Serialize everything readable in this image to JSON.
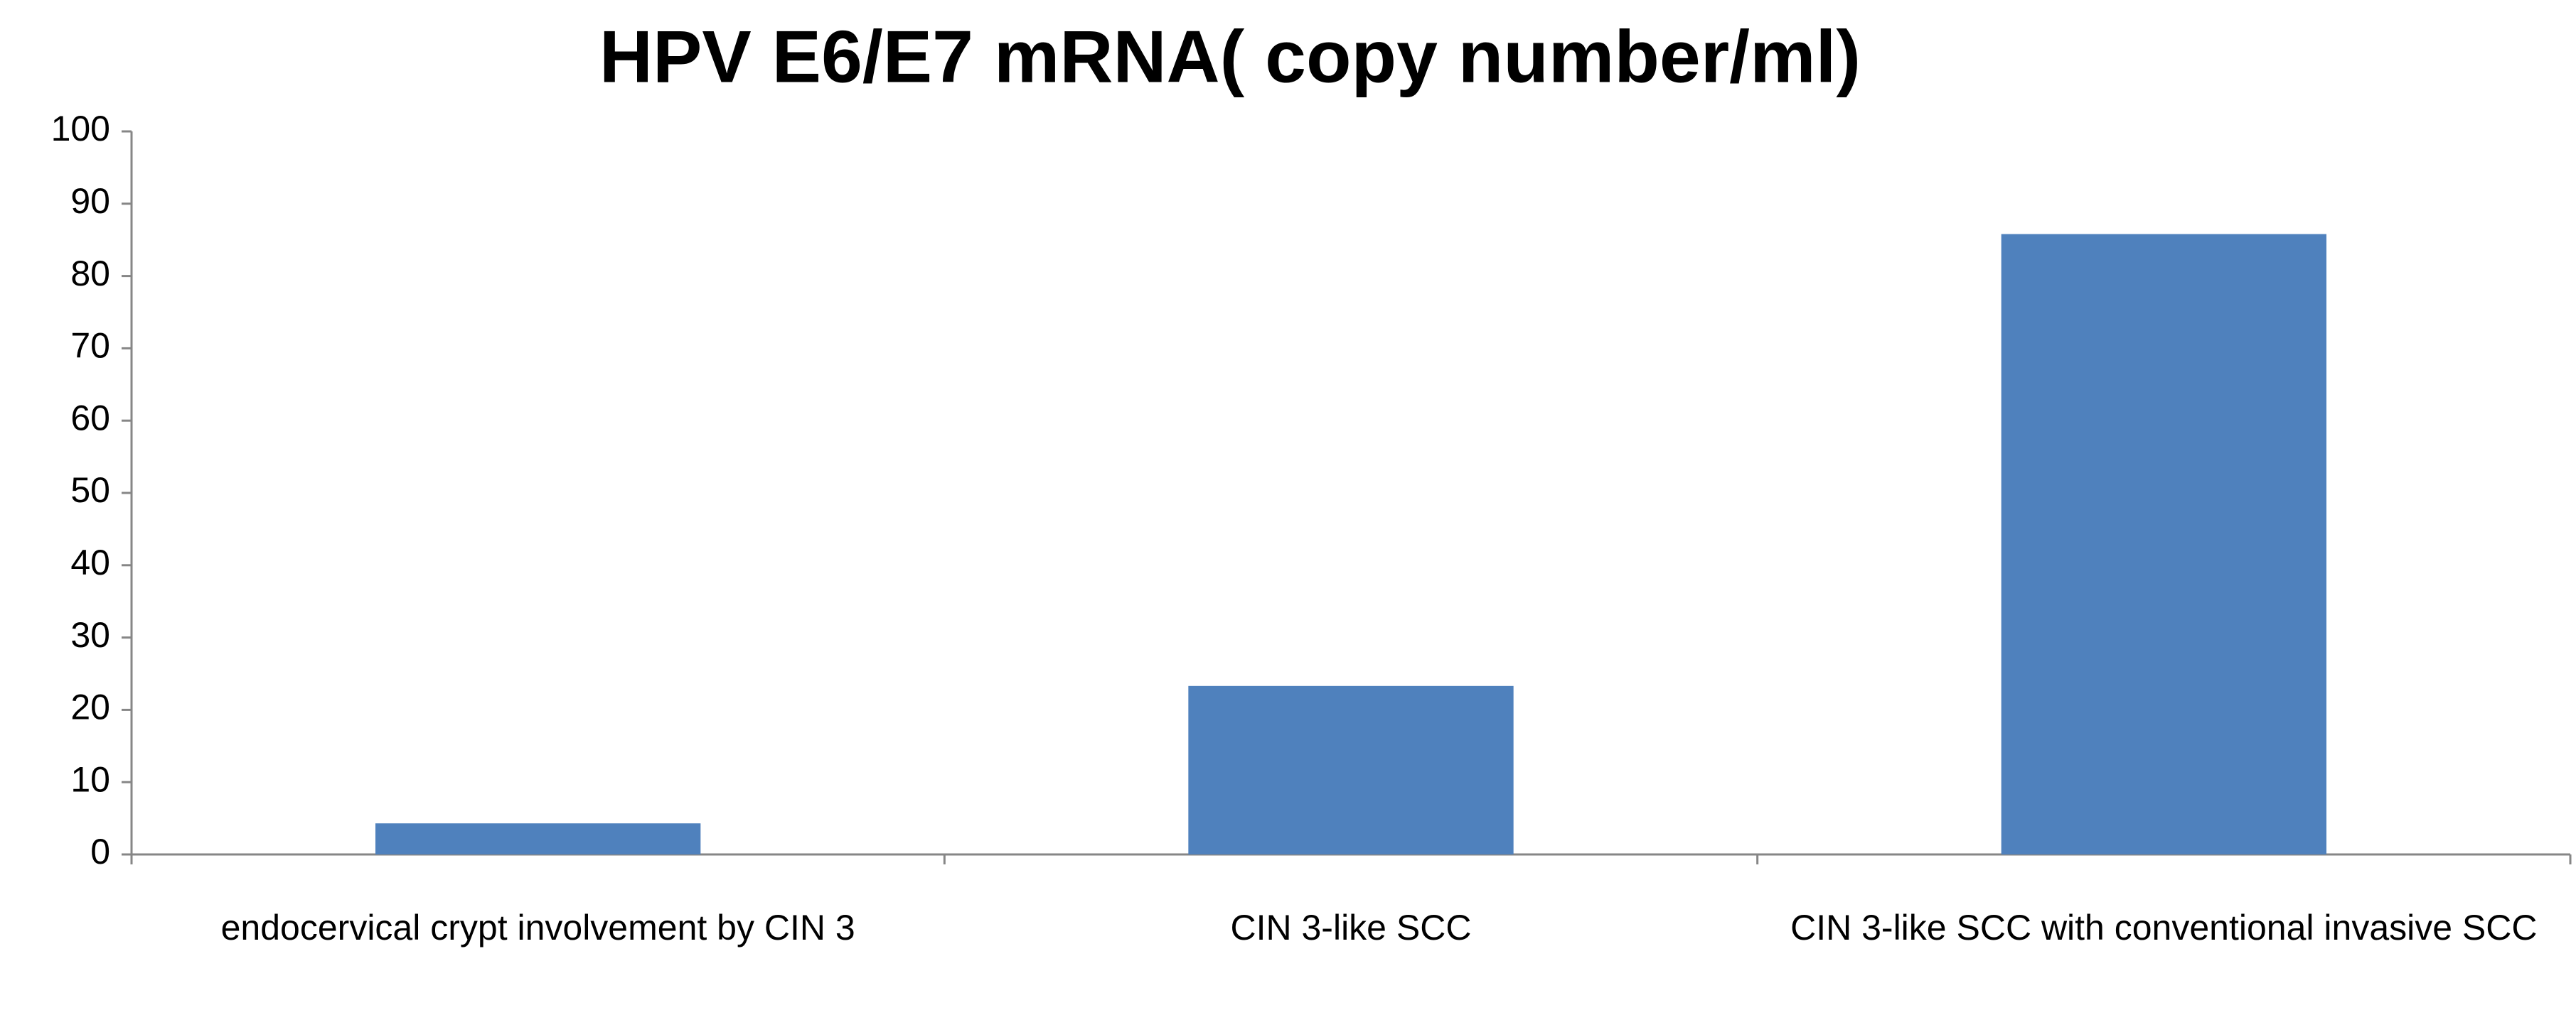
{
  "chart_data": {
    "type": "bar",
    "title": "HPV E6/E7 mRNA( copy number/ml)",
    "categories": [
      "endocervical crypt involvement by CIN 3",
      "CIN 3-like SCC",
      "CIN 3-like SCC with conventional invasive SCC"
    ],
    "values": [
      4.3,
      23.3,
      85.8
    ],
    "color": "#4f81bd",
    "ylim": [
      0,
      100
    ],
    "yticks": [
      0,
      10,
      20,
      30,
      40,
      50,
      60,
      70,
      80,
      90,
      100
    ],
    "grid": false
  }
}
